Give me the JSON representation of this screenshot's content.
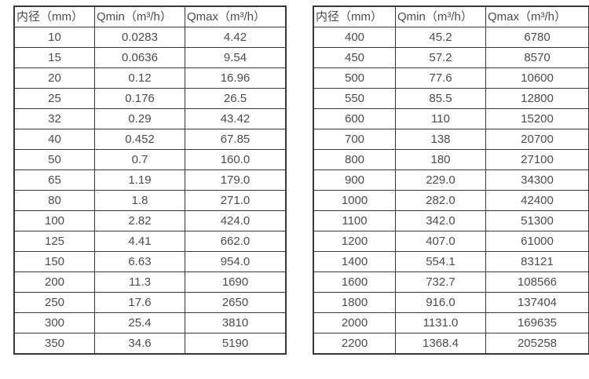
{
  "colors": {
    "background": "#ffffff",
    "text": "#4c4c4c",
    "border": "#383838"
  },
  "tables": [
    {
      "name": "flow-table-small-diameters",
      "headers": [
        "内径（mm）",
        "Qmin（m³/h）",
        "Qmax（m³/h）"
      ],
      "rows": [
        [
          "10",
          "0.0283",
          "4.42"
        ],
        [
          "15",
          "0.0636",
          "9.54"
        ],
        [
          "20",
          "0.12",
          "16.96"
        ],
        [
          "25",
          "0.176",
          "26.5"
        ],
        [
          "32",
          "0.29",
          "43.42"
        ],
        [
          "40",
          "0.452",
          "67.85"
        ],
        [
          "50",
          "0.7",
          "160.0"
        ],
        [
          "65",
          "1.19",
          "179.0"
        ],
        [
          "80",
          "1.8",
          "271.0"
        ],
        [
          "100",
          "2.82",
          "424.0"
        ],
        [
          "125",
          "4.41",
          "662.0"
        ],
        [
          "150",
          "6.63",
          "954.0"
        ],
        [
          "200",
          "11.3",
          "1690"
        ],
        [
          "250",
          "17.6",
          "2650"
        ],
        [
          "300",
          "25.4",
          "3810"
        ],
        [
          "350",
          "34.6",
          "5190"
        ]
      ]
    },
    {
      "name": "flow-table-large-diameters",
      "headers": [
        "内径（mm）",
        "Qmin（m³/h）",
        "Qmax（m³/h）"
      ],
      "rows": [
        [
          "400",
          "45.2",
          "6780"
        ],
        [
          "450",
          "57.2",
          "8570"
        ],
        [
          "500",
          "77.6",
          "10600"
        ],
        [
          "550",
          "85.5",
          "12800"
        ],
        [
          "600",
          "110",
          "15200"
        ],
        [
          "700",
          "138",
          "20700"
        ],
        [
          "800",
          "180",
          "27100"
        ],
        [
          "900",
          "229.0",
          "34300"
        ],
        [
          "1000",
          "282.0",
          "42400"
        ],
        [
          "1100",
          "342.0",
          "51300"
        ],
        [
          "1200",
          "407.0",
          "61000"
        ],
        [
          "1400",
          "554.1",
          "83121"
        ],
        [
          "1600",
          "732.7",
          "108566"
        ],
        [
          "1800",
          "916.0",
          "137404"
        ],
        [
          "2000",
          "1131.0",
          "169635"
        ],
        [
          "2200",
          "1368.4",
          "205258"
        ]
      ]
    }
  ]
}
